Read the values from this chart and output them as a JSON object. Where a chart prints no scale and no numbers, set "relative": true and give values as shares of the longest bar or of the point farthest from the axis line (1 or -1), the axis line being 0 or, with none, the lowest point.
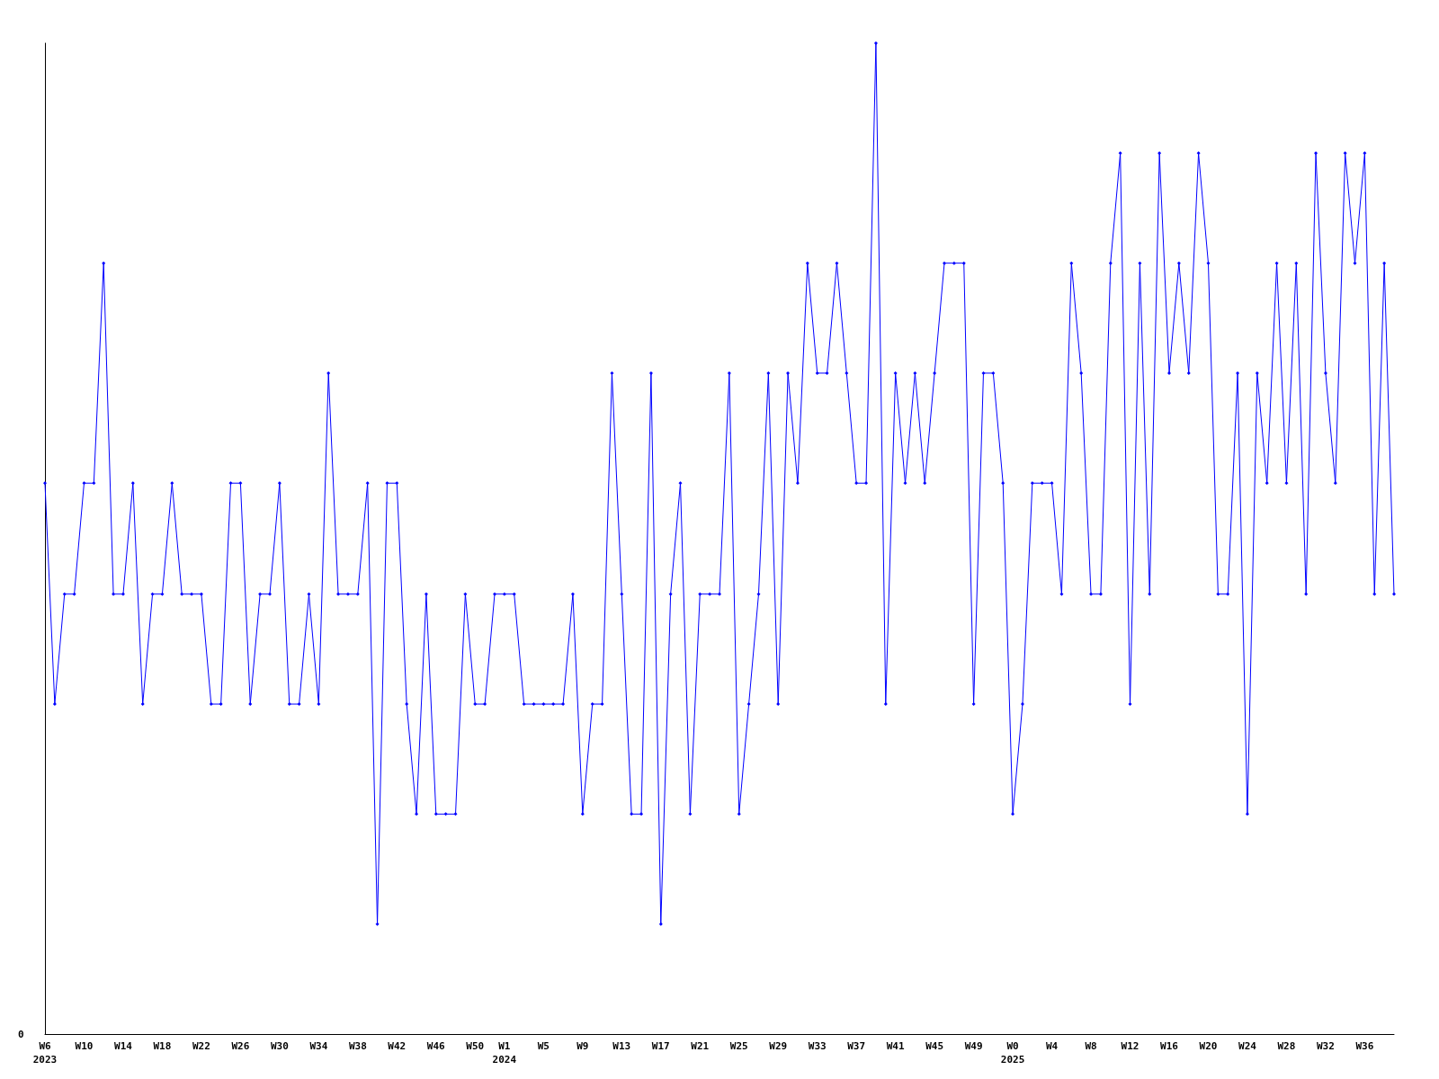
{
  "chart_data": {
    "type": "line",
    "relative": true,
    "marker": "diamond",
    "annotations": [
      "0"
    ],
    "categories": [
      "W6\n2023",
      null,
      null,
      null,
      "W10",
      null,
      null,
      null,
      "W14",
      null,
      null,
      null,
      "W18",
      null,
      null,
      null,
      "W22",
      null,
      null,
      null,
      "W26",
      null,
      null,
      null,
      "W30",
      null,
      null,
      null,
      "W34",
      null,
      null,
      null,
      "W38",
      null,
      null,
      null,
      "W42",
      null,
      null,
      null,
      "W46",
      null,
      null,
      null,
      "W50",
      null,
      null,
      "W1\n2024",
      null,
      null,
      null,
      "W5",
      null,
      null,
      null,
      "W9",
      null,
      null,
      null,
      "W13",
      null,
      null,
      null,
      "W17",
      null,
      null,
      null,
      "W21",
      null,
      null,
      null,
      "W25",
      null,
      null,
      null,
      "W29",
      null,
      null,
      null,
      "W33",
      null,
      null,
      null,
      "W37",
      null,
      null,
      null,
      "W41",
      null,
      null,
      null,
      "W45",
      null,
      null,
      null,
      "W49",
      null,
      null,
      null,
      "W0\n2025",
      null,
      null,
      null,
      "W4",
      null,
      null,
      null,
      "W8",
      null,
      null,
      null,
      "W12",
      null,
      null,
      null,
      "W16",
      null,
      null,
      null,
      "W20",
      null,
      null,
      null,
      "W24",
      null,
      null,
      null,
      "W28",
      null,
      null,
      null,
      "W32",
      null,
      null,
      null,
      "W36",
      null,
      null,
      null
    ],
    "series": [
      {
        "color": "#0000ff",
        "values": [
          0.556,
          0.333,
          0.444,
          0.444,
          0.556,
          0.556,
          0.778,
          0.444,
          0.444,
          0.556,
          0.333,
          0.444,
          0.444,
          0.556,
          0.444,
          0.444,
          0.444,
          0.333,
          0.333,
          0.556,
          0.556,
          0.333,
          0.444,
          0.444,
          0.556,
          0.333,
          0.333,
          0.444,
          0.333,
          0.667,
          0.444,
          0.444,
          0.444,
          0.556,
          0.111,
          0.556,
          0.556,
          0.333,
          0.222,
          0.444,
          0.222,
          0.222,
          0.222,
          0.444,
          0.333,
          0.333,
          0.444,
          0.444,
          0.444,
          0.333,
          0.333,
          0.333,
          0.333,
          0.333,
          0.444,
          0.222,
          0.333,
          0.333,
          0.667,
          0.444,
          0.222,
          0.222,
          0.667,
          0.111,
          0.444,
          0.556,
          0.222,
          0.444,
          0.444,
          0.444,
          0.667,
          0.222,
          0.333,
          0.444,
          0.667,
          0.333,
          0.667,
          0.556,
          0.778,
          0.667,
          0.667,
          0.778,
          0.667,
          0.556,
          0.556,
          1,
          0.333,
          0.667,
          0.556,
          0.667,
          0.556,
          0.667,
          0.778,
          0.778,
          0.778,
          0.333,
          0.667,
          0.667,
          0.556,
          0.222,
          0.333,
          0.556,
          0.556,
          0.556,
          0.444,
          0.778,
          0.667,
          0.444,
          0.444,
          0.778,
          0.889,
          0.333,
          0.778,
          0.444,
          0.889,
          0.667,
          0.778,
          0.667,
          0.889,
          0.778,
          0.444,
          0.444,
          0.667,
          0.222,
          0.667,
          0.556,
          0.778,
          0.556,
          0.778,
          0.444,
          0.889,
          0.667,
          0.556,
          0.889,
          0.778,
          0.889,
          0.444,
          0.778,
          0.444
        ]
      }
    ]
  }
}
